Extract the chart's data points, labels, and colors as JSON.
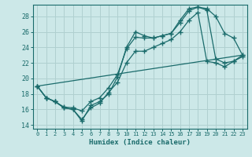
{
  "xlabel": "Humidex (Indice chaleur)",
  "xlim": [
    -0.5,
    23.5
  ],
  "ylim": [
    13.5,
    29.5
  ],
  "xticks": [
    0,
    1,
    2,
    3,
    4,
    5,
    6,
    7,
    8,
    9,
    10,
    11,
    12,
    13,
    14,
    15,
    16,
    17,
    18,
    19,
    20,
    21,
    22,
    23
  ],
  "yticks": [
    14,
    16,
    18,
    20,
    22,
    24,
    26,
    28
  ],
  "bg_color": "#cce8e8",
  "grid_color": "#b0d0d0",
  "line_color": "#1a6b6b",
  "line1_x": [
    0,
    1,
    2,
    3,
    4,
    5,
    6,
    7,
    8,
    9,
    10,
    11,
    12,
    13,
    14,
    15,
    16,
    17,
    18,
    19,
    20,
    21,
    22,
    23
  ],
  "line1_y": [
    19.0,
    17.5,
    17.0,
    16.2,
    16.0,
    14.5,
    16.5,
    17.0,
    18.0,
    20.2,
    24.0,
    26.0,
    25.5,
    25.2,
    25.5,
    25.8,
    27.5,
    29.0,
    29.2,
    29.0,
    28.0,
    25.8,
    25.2,
    23.0
  ],
  "line2_x": [
    0,
    1,
    2,
    3,
    4,
    5,
    6,
    7,
    8,
    9,
    10,
    11,
    12,
    13,
    14,
    15,
    16,
    17,
    18,
    19,
    20,
    21,
    22,
    23
  ],
  "line2_y": [
    19.0,
    17.5,
    17.0,
    16.3,
    16.2,
    15.8,
    17.0,
    17.5,
    18.8,
    20.5,
    23.8,
    25.3,
    25.2,
    25.2,
    25.5,
    25.8,
    27.2,
    28.7,
    29.2,
    28.8,
    22.5,
    22.0,
    22.2,
    23.0
  ],
  "line3_x": [
    0,
    1,
    2,
    3,
    4,
    5,
    6,
    7,
    8,
    9,
    10,
    11,
    12,
    13,
    14,
    15,
    16,
    17,
    18,
    19,
    20,
    21,
    22,
    23
  ],
  "line3_y": [
    19.0,
    17.5,
    17.0,
    16.2,
    16.0,
    14.7,
    16.2,
    16.8,
    18.2,
    19.5,
    22.0,
    23.5,
    23.5,
    24.0,
    24.5,
    25.0,
    26.0,
    27.5,
    28.5,
    22.2,
    22.0,
    21.5,
    22.2,
    22.8
  ]
}
